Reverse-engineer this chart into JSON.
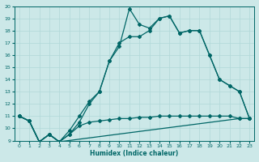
{
  "xlabel": "Humidex (Indice chaleur)",
  "bg_color": "#cce8e8",
  "grid_color": "#b0d8d8",
  "line_color": "#006666",
  "xlim": [
    -0.5,
    23.5
  ],
  "ylim": [
    9,
    20
  ],
  "xticks": [
    0,
    1,
    2,
    3,
    4,
    5,
    6,
    7,
    8,
    9,
    10,
    11,
    12,
    13,
    14,
    15,
    16,
    17,
    18,
    19,
    20,
    21,
    22,
    23
  ],
  "yticks": [
    9,
    10,
    11,
    12,
    13,
    14,
    15,
    16,
    17,
    18,
    19,
    20
  ],
  "line1_x": [
    0,
    1,
    2,
    3,
    4,
    22,
    23
  ],
  "line1_y": [
    11.0,
    10.6,
    8.9,
    9.5,
    8.9,
    10.8,
    10.8
  ],
  "line2_x": [
    0,
    1,
    2,
    3,
    4,
    5,
    6,
    7,
    8,
    9,
    10,
    11,
    12,
    13,
    14,
    15,
    16,
    17,
    18,
    19,
    20,
    21,
    22,
    23
  ],
  "line2_y": [
    11.0,
    10.6,
    8.9,
    9.5,
    8.9,
    9.5,
    10.2,
    10.5,
    10.6,
    10.7,
    10.8,
    10.8,
    10.9,
    10.9,
    11.0,
    11.0,
    11.0,
    11.0,
    11.0,
    11.0,
    11.0,
    11.0,
    10.8,
    10.8
  ],
  "line3_x": [
    0,
    1,
    2,
    3,
    4,
    5,
    6,
    7,
    8,
    9,
    10,
    11,
    12,
    13,
    14,
    15,
    16,
    17,
    18,
    19,
    20,
    21,
    22,
    23
  ],
  "line3_y": [
    11.0,
    10.6,
    8.9,
    9.5,
    8.9,
    9.8,
    11.0,
    12.2,
    13.0,
    15.5,
    17.0,
    17.5,
    17.5,
    18.0,
    19.0,
    19.2,
    17.8,
    18.0,
    18.0,
    16.0,
    14.0,
    13.5,
    13.0,
    10.8
  ],
  "line4_x": [
    0,
    1,
    2,
    3,
    4,
    5,
    6,
    7,
    8,
    9,
    10,
    11,
    12,
    13,
    14,
    15,
    16,
    17,
    18,
    19,
    20,
    21,
    22,
    23
  ],
  "line4_y": [
    11.0,
    10.6,
    8.9,
    9.5,
    8.9,
    9.5,
    10.5,
    12.0,
    13.0,
    15.5,
    16.7,
    19.8,
    18.5,
    18.2,
    19.0,
    19.2,
    17.8,
    18.0,
    18.0,
    16.0,
    14.0,
    13.5,
    13.0,
    10.8
  ]
}
